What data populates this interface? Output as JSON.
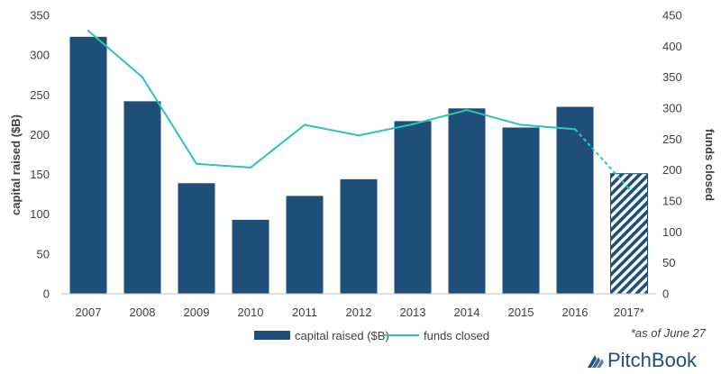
{
  "chart_data": {
    "type": "bar",
    "categories": [
      "2007",
      "2008",
      "2009",
      "2010",
      "2011",
      "2012",
      "2013",
      "2014",
      "2015",
      "2016",
      "2017*"
    ],
    "series": [
      {
        "name": "capital raised ($B)",
        "type": "bar",
        "axis": "left",
        "values": [
          323,
          242,
          139,
          93,
          123,
          144,
          217,
          233,
          209,
          235,
          151
        ],
        "color": "#1f4e79",
        "hatched_categories": [
          "2017*"
        ]
      },
      {
        "name": "funds closed",
        "type": "line",
        "axis": "right",
        "values": [
          425,
          350,
          210,
          204,
          273,
          256,
          274,
          297,
          273,
          266,
          170
        ],
        "color": "#2ec4b6",
        "dashed_from_category": "2016"
      }
    ],
    "ylabel": "capital raised ($B)",
    "ylim": [
      0,
      350
    ],
    "yticks": [
      0,
      50,
      100,
      150,
      200,
      250,
      300,
      350
    ],
    "y2label": "funds closed",
    "y2lim": [
      0,
      450
    ],
    "y2ticks": [
      0,
      50,
      100,
      150,
      200,
      250,
      300,
      350,
      400,
      450
    ],
    "grid": false,
    "legend": "bottom-center"
  },
  "footnote": "*as of June 27",
  "brand": {
    "name": "PitchBook",
    "icon": "pitchbook-logo-icon",
    "color": "#1f4e79"
  }
}
